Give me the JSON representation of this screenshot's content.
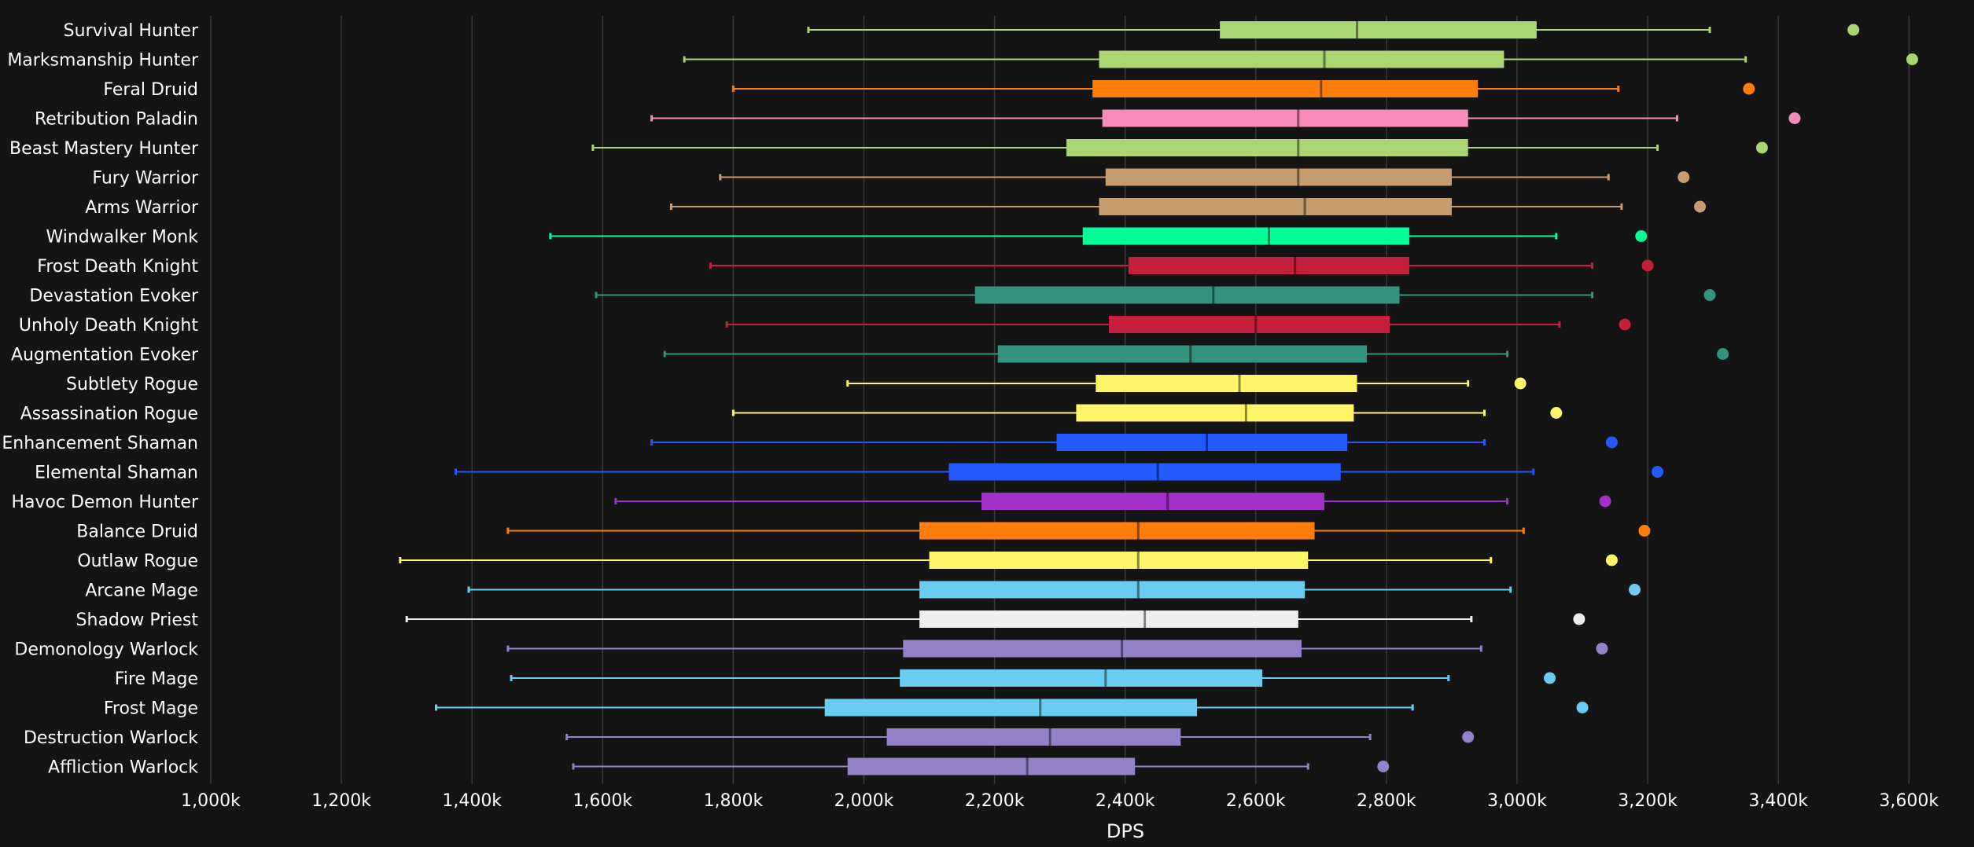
{
  "chart_data": {
    "type": "boxplot",
    "xlabel": "DPS",
    "xlim": [
      1000,
      3650
    ],
    "x_ticks": [
      1000,
      1200,
      1400,
      1600,
      1800,
      2000,
      2200,
      2400,
      2600,
      2800,
      3000,
      3200,
      3400,
      3600
    ],
    "x_tick_labels": [
      "1,000k",
      "1,200k",
      "1,400k",
      "1,600k",
      "1,800k",
      "2,000k",
      "2,200k",
      "2,400k",
      "2,600k",
      "2,800k",
      "3,000k",
      "3,200k",
      "3,400k",
      "3,600k"
    ],
    "grid": "vertical",
    "units": "k",
    "series": [
      {
        "name": "Survival Hunter",
        "color": "#abd473",
        "min": 1915,
        "q1": 2545,
        "median": 2755,
        "q3": 3030,
        "max": 3295,
        "outlier": 3515
      },
      {
        "name": "Marksmanship Hunter",
        "color": "#abd473",
        "min": 1725,
        "q1": 2360,
        "median": 2705,
        "q3": 2980,
        "max": 3350,
        "outlier": 3605
      },
      {
        "name": "Feral Druid",
        "color": "#ff7d0a",
        "min": 1800,
        "q1": 2350,
        "median": 2700,
        "q3": 2940,
        "max": 3155,
        "outlier": 3355
      },
      {
        "name": "Retribution Paladin",
        "color": "#f58cba",
        "min": 1675,
        "q1": 2365,
        "median": 2665,
        "q3": 2925,
        "max": 3245,
        "outlier": 3425
      },
      {
        "name": "Beast Mastery Hunter",
        "color": "#abd473",
        "min": 1585,
        "q1": 2310,
        "median": 2665,
        "q3": 2925,
        "max": 3215,
        "outlier": 3375
      },
      {
        "name": "Fury Warrior",
        "color": "#c79c6e",
        "min": 1780,
        "q1": 2370,
        "median": 2665,
        "q3": 2900,
        "max": 3140,
        "outlier": 3255
      },
      {
        "name": "Arms Warrior",
        "color": "#c79c6e",
        "min": 1705,
        "q1": 2360,
        "median": 2675,
        "q3": 2900,
        "max": 3160,
        "outlier": 3280
      },
      {
        "name": "Windwalker Monk",
        "color": "#00ff96",
        "min": 1520,
        "q1": 2335,
        "median": 2620,
        "q3": 2835,
        "max": 3060,
        "outlier": 3190
      },
      {
        "name": "Frost Death Knight",
        "color": "#c41f3b",
        "min": 1765,
        "q1": 2405,
        "median": 2660,
        "q3": 2835,
        "max": 3115,
        "outlier": 3200
      },
      {
        "name": "Devastation Evoker",
        "color": "#33937f",
        "min": 1590,
        "q1": 2170,
        "median": 2535,
        "q3": 2820,
        "max": 3115,
        "outlier": 3295
      },
      {
        "name": "Unholy Death Knight",
        "color": "#c41f3b",
        "min": 1790,
        "q1": 2375,
        "median": 2600,
        "q3": 2805,
        "max": 3065,
        "outlier": 3165
      },
      {
        "name": "Augmentation Evoker",
        "color": "#33937f",
        "min": 1695,
        "q1": 2205,
        "median": 2500,
        "q3": 2770,
        "max": 2985,
        "outlier": 3315
      },
      {
        "name": "Subtlety Rogue",
        "color": "#fff569",
        "min": 1975,
        "q1": 2355,
        "median": 2575,
        "q3": 2755,
        "max": 2925,
        "outlier": 3005
      },
      {
        "name": "Assassination Rogue",
        "color": "#fff569",
        "min": 1800,
        "q1": 2325,
        "median": 2585,
        "q3": 2750,
        "max": 2950,
        "outlier": 3060
      },
      {
        "name": "Enhancement Shaman",
        "color": "#2459ff",
        "min": 1675,
        "q1": 2295,
        "median": 2525,
        "q3": 2740,
        "max": 2950,
        "outlier": 3145
      },
      {
        "name": "Elemental Shaman",
        "color": "#2459ff",
        "min": 1375,
        "q1": 2130,
        "median": 2450,
        "q3": 2730,
        "max": 3025,
        "outlier": 3215
      },
      {
        "name": "Havoc Demon Hunter",
        "color": "#a330c9",
        "min": 1620,
        "q1": 2180,
        "median": 2465,
        "q3": 2705,
        "max": 2985,
        "outlier": 3135
      },
      {
        "name": "Balance Druid",
        "color": "#ff7d0a",
        "min": 1455,
        "q1": 2085,
        "median": 2420,
        "q3": 2690,
        "max": 3010,
        "outlier": 3195
      },
      {
        "name": "Outlaw Rogue",
        "color": "#fff569",
        "min": 1290,
        "q1": 2100,
        "median": 2420,
        "q3": 2680,
        "max": 2960,
        "outlier": 3145
      },
      {
        "name": "Arcane Mage",
        "color": "#69ccf0",
        "min": 1395,
        "q1": 2085,
        "median": 2420,
        "q3": 2675,
        "max": 2990,
        "outlier": 3180
      },
      {
        "name": "Shadow Priest",
        "color": "#eeeeee",
        "min": 1300,
        "q1": 2085,
        "median": 2430,
        "q3": 2665,
        "max": 2930,
        "outlier": 3095
      },
      {
        "name": "Demonology Warlock",
        "color": "#9482c9",
        "min": 1455,
        "q1": 2060,
        "median": 2395,
        "q3": 2670,
        "max": 2945,
        "outlier": 3130
      },
      {
        "name": "Fire Mage",
        "color": "#69ccf0",
        "min": 1460,
        "q1": 2055,
        "median": 2370,
        "q3": 2610,
        "max": 2895,
        "outlier": 3050
      },
      {
        "name": "Frost Mage",
        "color": "#69ccf0",
        "min": 1345,
        "q1": 1940,
        "median": 2270,
        "q3": 2510,
        "max": 2840,
        "outlier": 3100
      },
      {
        "name": "Destruction Warlock",
        "color": "#9482c9",
        "min": 1545,
        "q1": 2035,
        "median": 2285,
        "q3": 2485,
        "max": 2775,
        "outlier": 2925
      },
      {
        "name": "Affliction Warlock",
        "color": "#9482c9",
        "min": 1555,
        "q1": 1975,
        "median": 2250,
        "q3": 2415,
        "max": 2680,
        "outlier": 2795
      }
    ]
  }
}
